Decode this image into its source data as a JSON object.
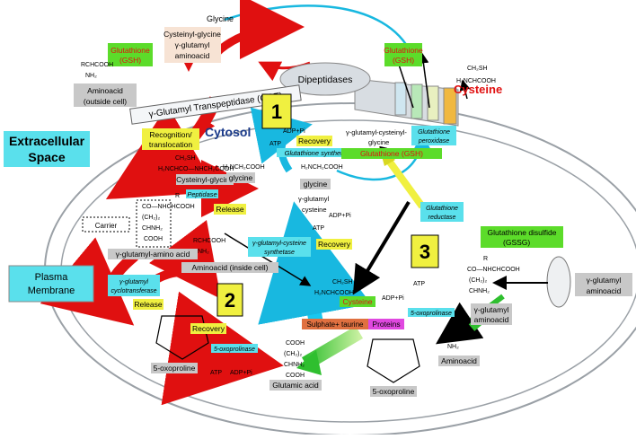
{
  "labels": {
    "glycine_top": "Glycine",
    "gsh_left_1": "Glutathione",
    "gsh_left_2": "(GSH)",
    "cysgly_1": "Cysteinyl-glycine",
    "cysgly_2": "γ-glutamyl",
    "cysgly_3": "aminoacid",
    "gsh_right_1": "Glutathione",
    "gsh_right_2": "(GSH)",
    "rchcooh_tl": "RCHCOOH",
    "nh2_tl": "NH₂",
    "aminoacid_out_1": "Aminoacid",
    "aminoacid_out_2": "(outside cell)",
    "dipeptidases": "Dipeptidases",
    "ggt": "γ-Glutamyl Transpeptidase (GGT)",
    "cysteine_red": "Cysteine",
    "ch2sh_tr": "CH₂SH",
    "h2nchcooh_tr": "H₂NCHCOOH",
    "extracellular_1": "Extracellular",
    "extracellular_2": "Space",
    "cytosol": "Cytosol",
    "recog_1": "Recognition/",
    "recog_2": "translocation",
    "ch2sh_1": "CH₂SH",
    "h2nchconh_1": "H₂NCHCO—NHCH₂COOH",
    "cysgly_in": "Cysteinyl-glycine",
    "peptidase": "Peptidase",
    "release_1": "Release",
    "glycine_mid": "glycine",
    "h2nch2cooh_1": "H₂NCH₂COOH",
    "step1": "1",
    "adp_pi_1": "ADP+Pi",
    "atp_1": "ATP",
    "recovery_1": "Recovery",
    "gsh_synthetase": "Glutathione synthetase",
    "gglu_cys_gly_1": "γ-glutamyl-cysteinyl-",
    "gglu_cys_gly_2": "glycine",
    "gsh_center": "Glutathione (GSH)",
    "gsh_peroxidase_1": "Glutathione",
    "gsh_peroxidase_2": "peroxidase",
    "gsh_reductase_1": "Glutathione",
    "gsh_reductase_2": "reductase",
    "gssg_1": "Glutathione disulfide",
    "gssg_2": "(GSSG)",
    "step3": "3",
    "carrier": "Carrier",
    "ggaa_in": "γ-glutamyl-amino acid",
    "r_1": "R",
    "co_nhchcooh": "CO—NHCHCOOH",
    "ch2_2": "(CH₂)₂",
    "chnh2": "CHNH₂",
    "cooh_1": "COOH",
    "rchcooh_mid": "RCHCOOH",
    "nh2_mid": "NH₂",
    "aminoacid_in": "Aminoacid (inside cell)",
    "plasma_1": "Plasma",
    "plasma_2": "Membrane",
    "gglu_cyclo_1": "γ-glutamyl",
    "gglu_cyclo_2": "cyclotransferase",
    "release_2": "Release",
    "step2": "2",
    "recovery_2": "Recovery",
    "oxoprolinase_1": "5-oxoprolinase",
    "atp_2": "ATP",
    "adp_pi_2": "ADP+Pi",
    "oxoproline_1": "5-oxoproline",
    "glutamic": "Glutamic acid",
    "gglu_cys": "γ-glutamyl",
    "cysteine_lbl": "cysteine",
    "ggcs_1": "γ-glutamyl-cysteine",
    "ggcs_2": "synthetase",
    "recovery_3": "Recovery",
    "adp_pi_3": "ADP+Pi",
    "atp_3": "ATP",
    "cysteine_green": "Cysteine",
    "sulphate": "Sulphate+ taurine",
    "proteins": "Proteins",
    "ch2sh_c": "CH₂SH",
    "h2nchcooh_c": "H₂NCHCOOH",
    "atp_4": "ATP",
    "adp_pi_4": "ADP+Pi",
    "oxoprolinase_2": "5-oxoprolinase",
    "oxoproline_2": "5-oxoproline",
    "gglu_aa_1": "γ-glutamyl",
    "gglu_aa_2": "aminoacid",
    "rchcooh_r": "RCHCOOH",
    "nh2_r": "NH₂",
    "aminoacid_r": "Aminoacid",
    "gglu_aa_out_1": "γ-glutamyl",
    "gglu_aa_out_2": "aminoacid",
    "glycine_box": "glycine",
    "recovery_top": "Recovery"
  }
}
